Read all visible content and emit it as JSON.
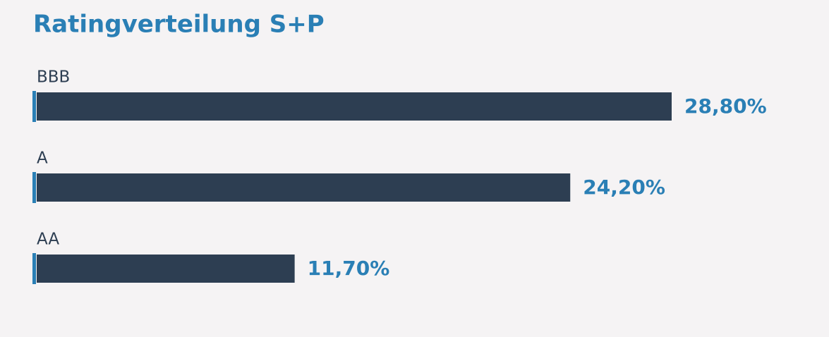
{
  "chart_data": {
    "type": "bar",
    "orientation": "horizontal",
    "title": "Ratingverteilung S+P",
    "categories": [
      "BBB",
      "A",
      "AA"
    ],
    "values": [
      28.8,
      24.2,
      11.7
    ],
    "value_labels": [
      "28,80%",
      "24,20%",
      "11,70%"
    ],
    "color": "#2d3e52",
    "accent_color": "#2a7fb5"
  }
}
